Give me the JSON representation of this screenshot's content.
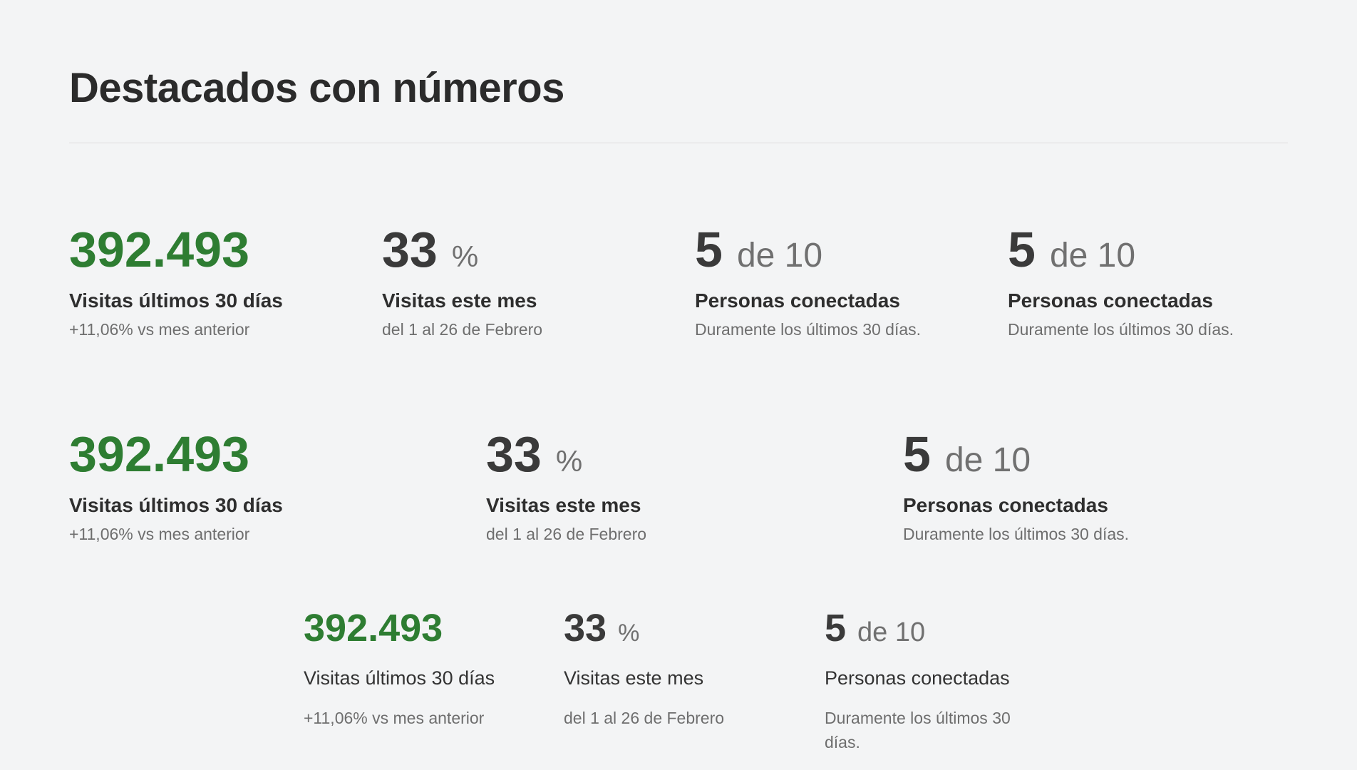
{
  "page": {
    "title": "Destacados con números"
  },
  "rows": [
    {
      "items": [
        {
          "value": "392.493",
          "unit": "",
          "label": "Visitas últimos 30 días",
          "sub": "+11,06% vs mes anterior"
        },
        {
          "value": "33",
          "unit": "%",
          "label": "Visitas este mes",
          "sub": "del 1 al 26 de Febrero"
        },
        {
          "value": "5",
          "unit": "de 10",
          "label": "Personas conectadas",
          "sub": "Duramente los últimos 30 días."
        },
        {
          "value": "5",
          "unit": "de 10",
          "label": "Personas conectadas",
          "sub": "Duramente los últimos 30 días."
        }
      ]
    },
    {
      "items": [
        {
          "value": "392.493",
          "unit": "",
          "label": "Visitas últimos 30 días",
          "sub": "+11,06% vs mes anterior"
        },
        {
          "value": "33",
          "unit": "%",
          "label": "Visitas este mes",
          "sub": "del 1 al 26 de Febrero"
        },
        {
          "value": "5",
          "unit": "de 10",
          "label": "Personas conectadas",
          "sub": "Duramente los últimos 30 días."
        }
      ]
    },
    {
      "items": [
        {
          "value": "392.493",
          "unit": "",
          "label": "Visitas últimos 30 días",
          "sub": "+11,06% vs mes anterior"
        },
        {
          "value": "33",
          "unit": "%",
          "label": "Visitas este mes",
          "sub": "del 1 al 26 de Febrero"
        },
        {
          "value": "5",
          "unit": "de 10",
          "label": "Personas conectadas",
          "sub": "Duramente los últimos 30 días."
        }
      ]
    }
  ],
  "colors": {
    "accent_green": "#2e7d32",
    "background": "#f3f4f5"
  }
}
